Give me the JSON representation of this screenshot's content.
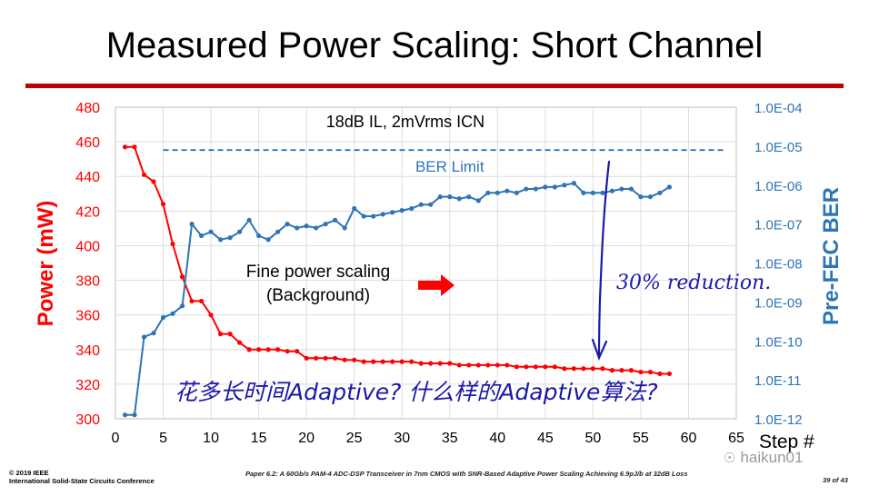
{
  "slide": {
    "title": "Measured Power Scaling: Short Channel"
  },
  "footer": {
    "copyright": "© 2019 IEEE",
    "conference": "International Solid-State Circuits Conference",
    "paper": "Paper 6.2: A 60Gb/s PAM-4 ADC-DSP Transceiver in 7nm CMOS with SNR-Based Adaptive Power Scaling Achieving 6.9pJ/b at 32dB Loss",
    "page": "39 of 43"
  },
  "watermark": {
    "icon": "wechat-icon",
    "text": "haikun01"
  },
  "chart_data": {
    "type": "line",
    "title": "18dB IL, 2mVrms ICN",
    "xlabel": "Step #",
    "ylabel": "Power (mW)",
    "y2label": "Pre-FEC BER",
    "xlim": [
      0,
      65
    ],
    "ylim": [
      300,
      480
    ],
    "x_ticks": [
      "0",
      "5",
      "10",
      "15",
      "20",
      "25",
      "30",
      "35",
      "40",
      "45",
      "50",
      "55",
      "60",
      "65"
    ],
    "y_ticks": [
      "300",
      "320",
      "340",
      "360",
      "380",
      "400",
      "420",
      "440",
      "460",
      "480"
    ],
    "y2_ticks": [
      "1.0E-12",
      "1.0E-11",
      "1.0E-10",
      "1.0E-09",
      "1.0E-08",
      "1.0E-07",
      "1.0E-06",
      "1.0E-05",
      "1.0E-04"
    ],
    "y2_scale": "log",
    "grid": true,
    "colors": {
      "power": "#ff0000",
      "ber": "#2e75b6",
      "ber_limit": "#2e75b6",
      "axis_left": "#ff0000",
      "axis_right": "#2e75b6"
    },
    "series": [
      {
        "name": "Power (mW)",
        "axis": "left",
        "x": [
          1,
          2,
          3,
          4,
          5,
          6,
          7,
          8,
          9,
          10,
          11,
          12,
          13,
          14,
          15,
          16,
          17,
          18,
          19,
          20,
          21,
          22,
          23,
          24,
          25,
          26,
          27,
          28,
          29,
          30,
          31,
          32,
          33,
          34,
          35,
          36,
          37,
          38,
          39,
          40,
          41,
          42,
          43,
          44,
          45,
          46,
          47,
          48,
          49,
          50,
          51,
          52,
          53,
          54,
          55,
          56,
          57,
          58
        ],
        "values": [
          457,
          457,
          441,
          437,
          424,
          401,
          382,
          368,
          368,
          360,
          349,
          349,
          344,
          340,
          340,
          340,
          340,
          339,
          339,
          335,
          335,
          335,
          335,
          334,
          334,
          333,
          333,
          333,
          333,
          333,
          333,
          332,
          332,
          332,
          332,
          331,
          331,
          331,
          331,
          331,
          331,
          330,
          330,
          330,
          330,
          330,
          329,
          329,
          329,
          329,
          329,
          328,
          328,
          328,
          327,
          327,
          326,
          326
        ]
      },
      {
        "name": "Pre-FEC BER",
        "axis": "right",
        "x": [
          1,
          2,
          3,
          4,
          5,
          6,
          7,
          8,
          9,
          10,
          11,
          12,
          13,
          14,
          15,
          16,
          17,
          18,
          19,
          20,
          21,
          22,
          23,
          24,
          25,
          26,
          27,
          28,
          29,
          30,
          31,
          32,
          33,
          34,
          35,
          36,
          37,
          38,
          39,
          40,
          41,
          42,
          43,
          44,
          45,
          46,
          47,
          48,
          49,
          50,
          51,
          52,
          53,
          54,
          55,
          56,
          57,
          58
        ],
        "values": [
          -11.9,
          -11.9,
          -9.9,
          -9.8,
          -9.4,
          -9.3,
          -9.1,
          -7.0,
          -7.3,
          -7.2,
          -7.4,
          -7.35,
          -7.2,
          -6.9,
          -7.3,
          -7.4,
          -7.2,
          -7.0,
          -7.1,
          -7.05,
          -7.1,
          -7.0,
          -6.9,
          -7.1,
          -6.6,
          -6.8,
          -6.8,
          -6.75,
          -6.7,
          -6.65,
          -6.6,
          -6.5,
          -6.5,
          -6.3,
          -6.3,
          -6.35,
          -6.3,
          -6.4,
          -6.2,
          -6.2,
          -6.15,
          -6.2,
          -6.1,
          -6.1,
          -6.05,
          -6.05,
          -6.0,
          -5.95,
          -6.2,
          -6.2,
          -6.2,
          -6.15,
          -6.1,
          -6.1,
          -6.3,
          -6.3,
          -6.2,
          -6.05
        ]
      }
    ],
    "reference_line": {
      "name": "BER Limit",
      "axis": "right",
      "value": -5.1,
      "x_range": [
        5,
        64
      ]
    },
    "annotations": {
      "fine_scaling_line1": "Fine power scaling",
      "fine_scaling_line2": "(Background)",
      "handwritten_reduction": "30% reduction.",
      "handwritten_question": "花多长时间Adaptive? 什么样的Adaptive算法?"
    }
  }
}
